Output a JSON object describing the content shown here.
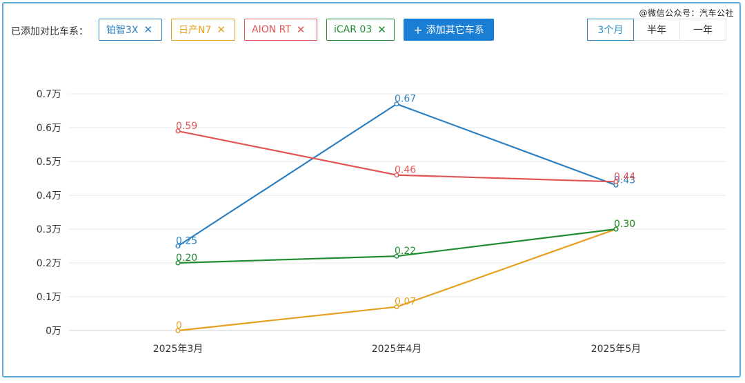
{
  "header": {
    "watermark": "@微信公众号：汽车公社",
    "compare_label": "已添加对比车系：",
    "tags": [
      {
        "label": "铂智3X",
        "color": "#2b7fc1"
      },
      {
        "label": "日产N7",
        "color": "#e6a020"
      },
      {
        "label": "AION RT",
        "color": "#e05555"
      },
      {
        "label": "iCAR 03",
        "color": "#1e8c2e"
      }
    ],
    "add_button": "添加其它车系",
    "ranges": [
      "3个月",
      "半年",
      "一年"
    ],
    "active_range": "3个月"
  },
  "chart_data": {
    "type": "line",
    "categories": [
      "2025年3月",
      "2025年4月",
      "2025年5月"
    ],
    "yticks": [
      "0万",
      "0.1万",
      "0.2万",
      "0.3万",
      "0.4万",
      "0.5万",
      "0.6万",
      "0.7万"
    ],
    "ylim": [
      0,
      0.7
    ],
    "grid": true,
    "series": [
      {
        "name": "铂智3X",
        "color": "#2b7fc1",
        "values": [
          0.25,
          0.67,
          0.43
        ],
        "labels": [
          "0.25",
          "0.67",
          "0.43"
        ]
      },
      {
        "name": "日产N7",
        "color": "#e6a020",
        "values": [
          0,
          0.07,
          0.3
        ],
        "labels": [
          "0",
          "0.07",
          "0.30"
        ]
      },
      {
        "name": "AION RT",
        "color": "#e05555",
        "values": [
          0.59,
          0.46,
          0.44
        ],
        "labels": [
          "0.59",
          "0.46",
          "0.44"
        ]
      },
      {
        "name": "iCAR 03",
        "color": "#1e8c2e",
        "values": [
          0.2,
          0.22,
          0.3
        ],
        "labels": [
          "0.20",
          "0.22",
          "0.30"
        ]
      }
    ]
  }
}
